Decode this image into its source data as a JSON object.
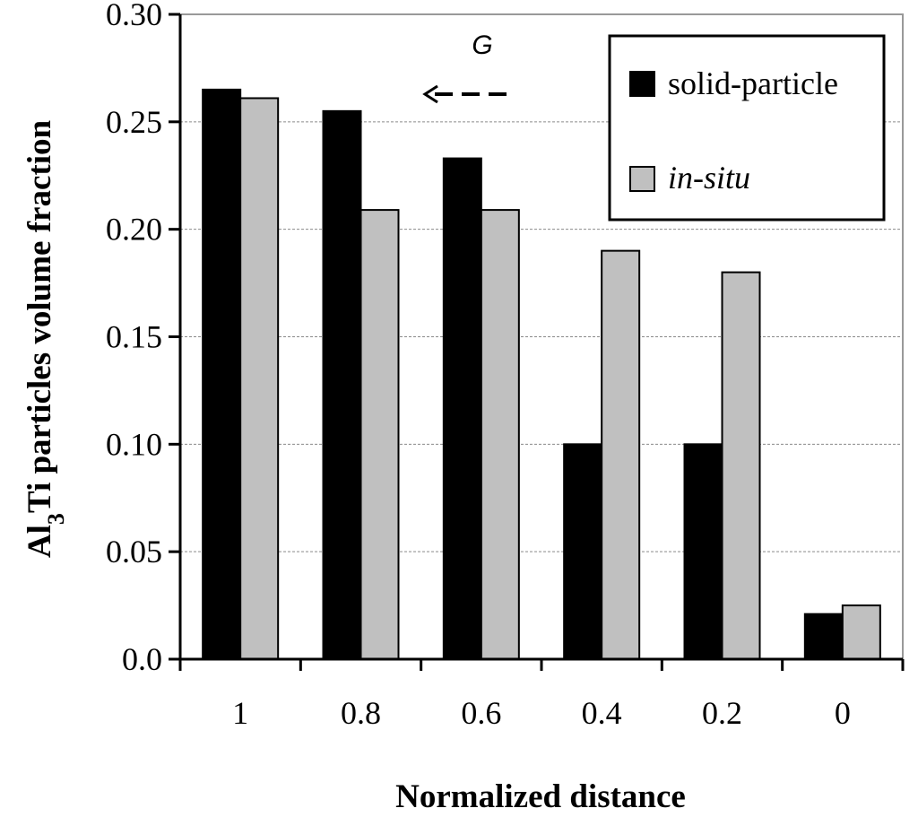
{
  "chart_data": {
    "type": "bar",
    "categories": [
      "1",
      "0.8",
      "0.6",
      "0.4",
      "0.2",
      "0"
    ],
    "series": [
      {
        "name": "solid-particle",
        "values": [
          0.265,
          0.255,
          0.233,
          0.1,
          0.1,
          0.021
        ],
        "color": "#000000"
      },
      {
        "name": "in-situ",
        "values": [
          0.261,
          0.209,
          0.209,
          0.19,
          0.18,
          0.025
        ],
        "color": "#c0c0c0"
      }
    ],
    "xlabel": "Normalized distance",
    "ylabel": {
      "prefix": "Al",
      "subscript": "3",
      "suffix": "Ti particles volume fraction"
    },
    "ylim": [
      0.0,
      0.3
    ],
    "yticks": [
      {
        "value": 0.0,
        "label": "0.0"
      },
      {
        "value": 0.05,
        "label": "0.05"
      },
      {
        "value": 0.1,
        "label": "0.10"
      },
      {
        "value": 0.15,
        "label": "0.15"
      },
      {
        "value": 0.2,
        "label": "0.20"
      },
      {
        "value": 0.25,
        "label": "0.25"
      },
      {
        "value": 0.3,
        "label": "0.30"
      }
    ],
    "grid": true,
    "legend_position": "top-right",
    "annotation": {
      "label": "G",
      "arrow_direction": "left"
    }
  }
}
